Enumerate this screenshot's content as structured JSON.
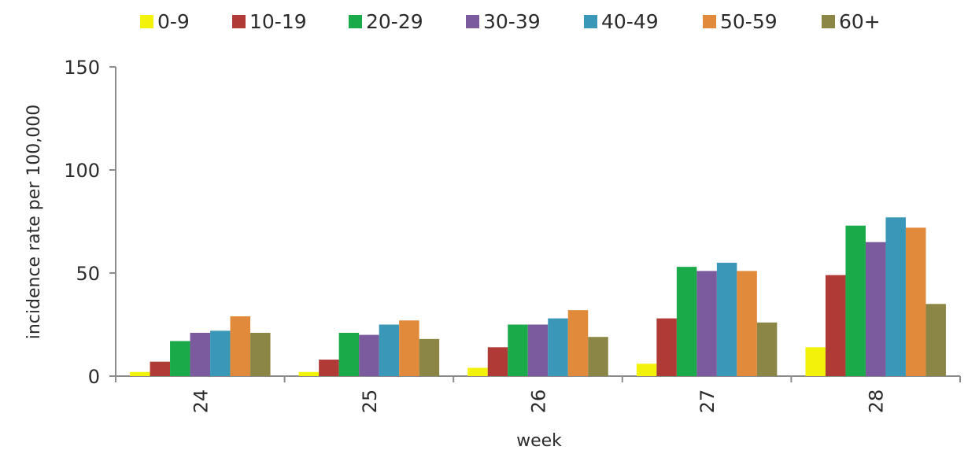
{
  "chart_data": {
    "type": "bar",
    "title": "",
    "xlabel": "week",
    "ylabel": "incidence rate per 100,000",
    "categories": [
      "24",
      "25",
      "26",
      "27",
      "28"
    ],
    "ylim": [
      0,
      150
    ],
    "yticks": [
      "0",
      "50",
      "100",
      "150"
    ],
    "grid": false,
    "legend_position": "top",
    "series": [
      {
        "name": "0-9",
        "color": "#f2f20a",
        "values": [
          2,
          2,
          4,
          6,
          14
        ]
      },
      {
        "name": "10-19",
        "color": "#b03a36",
        "values": [
          7,
          8,
          14,
          28,
          49
        ]
      },
      {
        "name": "20-29",
        "color": "#1aaa4a",
        "values": [
          17,
          21,
          25,
          53,
          73
        ]
      },
      {
        "name": "30-39",
        "color": "#7b5a9e",
        "values": [
          21,
          20,
          25,
          51,
          65
        ]
      },
      {
        "name": "40-49",
        "color": "#3a97b8",
        "values": [
          22,
          25,
          28,
          55,
          77
        ]
      },
      {
        "name": "50-59",
        "color": "#e28a3c",
        "values": [
          29,
          27,
          32,
          51,
          72
        ]
      },
      {
        "name": "60+",
        "color": "#8c8646",
        "values": [
          21,
          18,
          19,
          26,
          35
        ]
      }
    ]
  }
}
